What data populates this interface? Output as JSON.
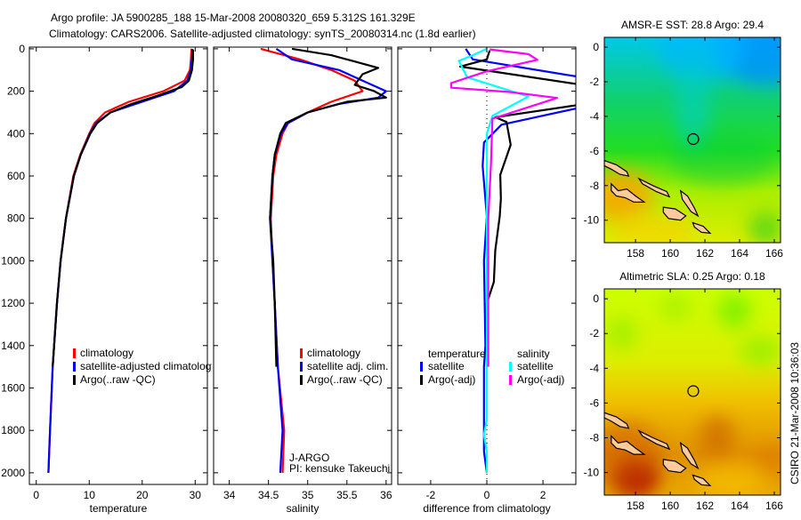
{
  "title": {
    "line1": "Argo profile: JA 5900285_188 15-Mar-2008 20080320_659 5.312S 161.329E",
    "line2": "Climatology: CARS2006. Satellite-adjusted climatology: synTS_20080314.nc (1.8d earlier)"
  },
  "stamp": "CSIRO 21-Mar-2008 10:36:03",
  "colors": {
    "clim": "#ff0000",
    "sat": "#0000ff",
    "argo": "#000000",
    "sal_sat": "#00ffff",
    "sal_argo": "#ff00ff",
    "land": "#ffcc99"
  },
  "chart_data": [
    {
      "type": "line",
      "name": "temperature",
      "xlabel": "temperature",
      "ylabel": "",
      "xlim": [
        -1.3,
        32.3
      ],
      "ylim": [
        2055,
        -8
      ],
      "xticks": [
        0,
        10,
        20,
        30
      ],
      "yticks": [
        0,
        200,
        400,
        600,
        800,
        1000,
        1200,
        1400,
        1600,
        1800,
        2000
      ],
      "legend": {
        "entries": [
          "climatology",
          "satellite-adjusted climatology",
          "Argo(..raw -QC)"
        ]
      },
      "series": [
        {
          "name": "climatology",
          "color": "#ff0000",
          "points": [
            [
              0,
              29.3
            ],
            [
              50,
              29.2
            ],
            [
              100,
              29
            ],
            [
              150,
              28
            ],
            [
              200,
              24
            ],
            [
              250,
              17.5
            ],
            [
              300,
              13
            ],
            [
              350,
              11
            ],
            [
              400,
              10
            ],
            [
              500,
              8.3
            ],
            [
              600,
              7
            ],
            [
              800,
              5.6
            ],
            [
              1000,
              4.6
            ],
            [
              1200,
              3.9
            ],
            [
              1500,
              3.1
            ],
            [
              1800,
              2.6
            ],
            [
              2000,
              2.3
            ]
          ]
        },
        {
          "name": "satellite-adjusted climatology",
          "color": "#0000ff",
          "points": [
            [
              0,
              29.5
            ],
            [
              50,
              29.4
            ],
            [
              100,
              29.2
            ],
            [
              150,
              28.5
            ],
            [
              200,
              26
            ],
            [
              250,
              20
            ],
            [
              300,
              14
            ],
            [
              350,
              11.3
            ],
            [
              400,
              10.1
            ],
            [
              500,
              8.4
            ],
            [
              600,
              7.1
            ],
            [
              800,
              5.6
            ],
            [
              1000,
              4.6
            ],
            [
              1200,
              3.9
            ],
            [
              1500,
              3.1
            ],
            [
              1800,
              2.6
            ],
            [
              2000,
              2.3
            ]
          ]
        },
        {
          "name": "Argo(..raw -QC)",
          "color": "#000000",
          "points": [
            [
              5,
              29.6
            ],
            [
              50,
              29.6
            ],
            [
              100,
              29.4
            ],
            [
              150,
              28.8
            ],
            [
              180,
              27.5
            ],
            [
              220,
              23
            ],
            [
              260,
              18
            ],
            [
              300,
              14
            ],
            [
              350,
              11.5
            ],
            [
              400,
              10.2
            ],
            [
              500,
              8.4
            ],
            [
              600,
              7.1
            ],
            [
              800,
              5.6
            ],
            [
              1000,
              4.6
            ],
            [
              1200,
              3.9
            ],
            [
              1500,
              3.1
            ]
          ]
        }
      ]
    },
    {
      "type": "line",
      "name": "salinity",
      "xlabel": "salinity",
      "xlim": [
        33.8,
        36.07
      ],
      "ylim": [
        2055,
        -8
      ],
      "xticks": [
        34,
        34.5,
        35,
        35.5,
        36
      ],
      "legend": {
        "entries": [
          "climatology",
          "satellite adj. clim.",
          "Argo(..raw -QC)"
        ]
      },
      "annotation": [
        "J-ARGO",
        "PI: kensuke Takeuchi"
      ],
      "series": [
        {
          "name": "climatology",
          "color": "#ff0000",
          "points": [
            [
              0,
              34.4
            ],
            [
              50,
              34.9
            ],
            [
              100,
              35.3
            ],
            [
              150,
              35.6
            ],
            [
              200,
              35.7
            ],
            [
              250,
              35.3
            ],
            [
              300,
              35
            ],
            [
              350,
              34.75
            ],
            [
              400,
              34.68
            ],
            [
              500,
              34.6
            ],
            [
              600,
              34.56
            ],
            [
              800,
              34.53
            ],
            [
              1000,
              34.55
            ],
            [
              1200,
              34.58
            ],
            [
              1500,
              34.62
            ],
            [
              1800,
              34.7
            ],
            [
              2000,
              34.68
            ]
          ]
        },
        {
          "name": "satellite adj. clim.",
          "color": "#0000ff",
          "points": [
            [
              0,
              34.6
            ],
            [
              50,
              34.8
            ],
            [
              100,
              35.4
            ],
            [
              150,
              35.7
            ],
            [
              200,
              36.0
            ],
            [
              230,
              35.9
            ],
            [
              260,
              35.4
            ],
            [
              300,
              35.0
            ],
            [
              350,
              34.75
            ],
            [
              400,
              34.66
            ],
            [
              500,
              34.58
            ],
            [
              600,
              34.55
            ],
            [
              800,
              34.52
            ],
            [
              1000,
              34.55
            ],
            [
              1200,
              34.58
            ],
            [
              1500,
              34.62
            ],
            [
              1800,
              34.68
            ],
            [
              2000,
              34.65
            ]
          ]
        },
        {
          "name": "Argo(..raw -QC)",
          "color": "#000000",
          "points": [
            [
              0,
              34.8
            ],
            [
              30,
              35.3
            ],
            [
              60,
              35.6
            ],
            [
              90,
              35.9
            ],
            [
              120,
              35.7
            ],
            [
              170,
              35.6
            ],
            [
              200,
              35.85
            ],
            [
              230,
              36.0
            ],
            [
              250,
              35.5
            ],
            [
              300,
              35.0
            ],
            [
              350,
              34.72
            ],
            [
              400,
              34.65
            ],
            [
              500,
              34.58
            ],
            [
              600,
              34.55
            ],
            [
              800,
              34.52
            ],
            [
              1000,
              34.56
            ],
            [
              1200,
              34.58
            ],
            [
              1500,
              34.6
            ]
          ]
        }
      ]
    },
    {
      "type": "line",
      "name": "difference",
      "xlabel": "difference from climatology",
      "xlim": [
        -3.17,
        3.17
      ],
      "ylim": [
        2055,
        -8
      ],
      "xticks": [
        -2,
        0,
        2
      ],
      "legend": {
        "headers": [
          "temperature",
          "salinity"
        ],
        "entries": [
          "satellite",
          "Argo(-adj)",
          "satellite",
          "Argo(-adj)"
        ]
      },
      "series": [
        {
          "name": "temperature satellite",
          "color": "#0000ff",
          "points": [
            [
              0,
              -0.75
            ],
            [
              50,
              -0.5
            ],
            [
              133,
              3.3
            ],
            [
              278,
              3.3
            ],
            [
              358,
              0.52
            ],
            [
              442,
              -0.1
            ],
            [
              553,
              -0.15
            ],
            [
              790,
              0
            ],
            [
              1000,
              -0.1
            ],
            [
              1400,
              -0.05
            ],
            [
              1500,
              -0.1
            ],
            [
              1900,
              -0.1
            ],
            [
              2000,
              0
            ]
          ]
        },
        {
          "name": "temperature Argo(-adj)",
          "color": "#000000",
          "points": [
            [
              8,
              0.1
            ],
            [
              50,
              0
            ],
            [
              84,
              -0.95
            ],
            [
              168,
              3.3
            ],
            [
              264,
              3.3
            ],
            [
              323,
              0.3
            ],
            [
              345,
              0.7
            ],
            [
              453,
              0.85
            ],
            [
              594,
              0.48
            ],
            [
              706,
              0.5
            ],
            [
              790,
              0.46
            ],
            [
              950,
              0.3
            ],
            [
              1100,
              0.25
            ],
            [
              1200,
              0
            ],
            [
              1500,
              0
            ]
          ]
        },
        {
          "name": "salinity satellite",
          "color": "#00ffff",
          "points": [
            [
              0,
              0
            ],
            [
              36,
              -0.6
            ],
            [
              57,
              -1.0
            ],
            [
              134,
              -0.7
            ],
            [
              225,
              1.48
            ],
            [
              316,
              0.2
            ],
            [
              400,
              0
            ],
            [
              800,
              0
            ],
            [
              1500,
              0
            ],
            [
              1750,
              0
            ],
            [
              1820,
              -0.1
            ],
            [
              1900,
              0
            ],
            [
              2000,
              0
            ]
          ]
        },
        {
          "name": "salinity Argo(-adj)",
          "color": "#ff00ff",
          "points": [
            [
              3,
              0.1
            ],
            [
              25,
              1.48
            ],
            [
              52,
              1.8
            ],
            [
              106,
              0
            ],
            [
              162,
              -1.27
            ],
            [
              183,
              -1.27
            ],
            [
              204,
              0.85
            ],
            [
              232,
              2.5
            ],
            [
              330,
              0.2
            ],
            [
              540,
              0.15
            ],
            [
              800,
              0.05
            ],
            [
              1500,
              0.05
            ]
          ]
        }
      ]
    },
    {
      "type": "heatmap",
      "name": "sst-map",
      "title": "AMSR-E SST: 28.8 Argo: 29.4",
      "xlim": [
        156.2,
        166.36
      ],
      "ylim": [
        -11.3,
        0.57
      ],
      "xticks": [
        158,
        160,
        162,
        164,
        166
      ],
      "yticks": [
        0,
        -2,
        -4,
        -6,
        -8,
        -10
      ],
      "float_position": [
        161.329,
        -5.312
      ]
    },
    {
      "type": "heatmap",
      "name": "sla-map",
      "title": "Altimetric SLA: 0.25 Argo: 0.18",
      "xlim": [
        156.2,
        166.36
      ],
      "ylim": [
        -11.3,
        0.57
      ],
      "xticks": [
        158,
        160,
        162,
        164,
        166
      ],
      "yticks": [
        0,
        -2,
        -4,
        -6,
        -8,
        -10
      ],
      "float_position": [
        161.329,
        -5.312
      ]
    }
  ]
}
